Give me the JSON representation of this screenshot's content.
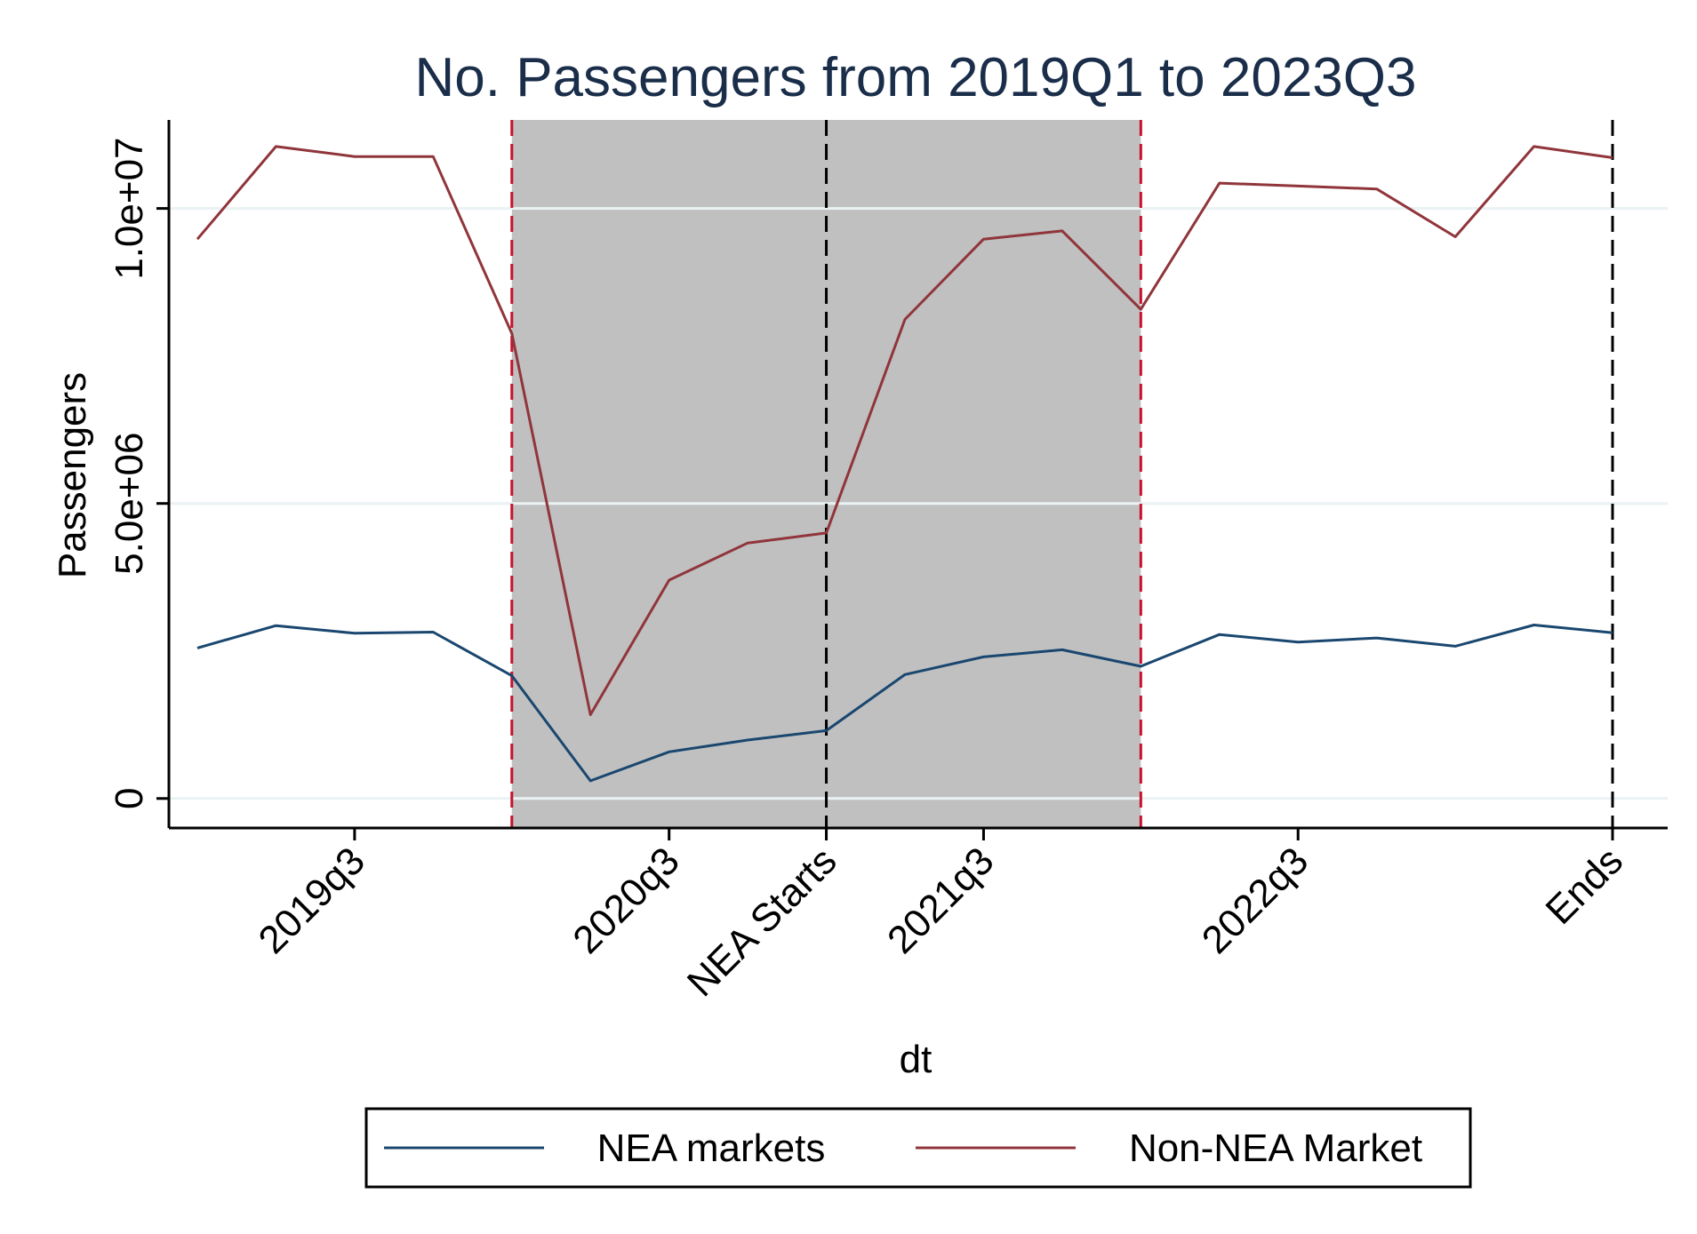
{
  "chart_data": {
    "type": "line",
    "title": "No. Passengers from 2019Q1 to 2023Q3",
    "xlabel": "dt",
    "ylabel": "Passengers",
    "x": [
      "2019q1",
      "2019q2",
      "2019q3",
      "2019q4",
      "2020q1",
      "2020q2",
      "2020q3",
      "2020q4",
      "2021q1",
      "2021q2",
      "2021q3",
      "2021q4",
      "2022q1",
      "2022q2",
      "2022q3",
      "2022q4",
      "2023q1",
      "2023q2",
      "2023q3"
    ],
    "ylim": [
      -500000,
      11500000
    ],
    "yticks": [
      {
        "value": 0,
        "label": "0"
      },
      {
        "value": 5000000,
        "label": "5.0e+06"
      },
      {
        "value": 10000000,
        "label": "1.0e+07"
      }
    ],
    "xticks": [
      {
        "at": "2019q3",
        "label": "2019q3"
      },
      {
        "at": "2020q3",
        "label": "2020q3"
      },
      {
        "at": "2021q1",
        "label": "NEA Starts"
      },
      {
        "at": "2021q3",
        "label": "2021q3"
      },
      {
        "at": "2022q3",
        "label": "2022q3"
      },
      {
        "at": "2023q3",
        "label": "Ends"
      }
    ],
    "shaded_region": {
      "from": "2020q1",
      "to": "2022q1",
      "color": "#c0c0c0"
    },
    "vlines": [
      {
        "at": "2020q1",
        "color": "#c8102e",
        "style": "dashed"
      },
      {
        "at": "2021q1",
        "color": "#000000",
        "style": "dashed"
      },
      {
        "at": "2022q1",
        "color": "#c8102e",
        "style": "dashed"
      },
      {
        "at": "2023q3",
        "color": "#000000",
        "style": "dashed"
      }
    ],
    "grid": true,
    "legend_position": "bottom",
    "series": [
      {
        "name": "NEA markets",
        "color": "#1a476f",
        "values": [
          2550000,
          2930000,
          2800000,
          2820000,
          2080000,
          300000,
          790000,
          990000,
          1150000,
          2100000,
          2400000,
          2520000,
          2240000,
          2780000,
          2650000,
          2720000,
          2580000,
          2940000,
          2810000
        ]
      },
      {
        "name": "Non-NEA Market",
        "color": "#90353b",
        "values": [
          9480000,
          11050000,
          10880000,
          10880000,
          7880000,
          1420000,
          3700000,
          4330000,
          4500000,
          8120000,
          9480000,
          9620000,
          8290000,
          10430000,
          10380000,
          10330000,
          9520000,
          11050000,
          10860000
        ]
      }
    ]
  }
}
